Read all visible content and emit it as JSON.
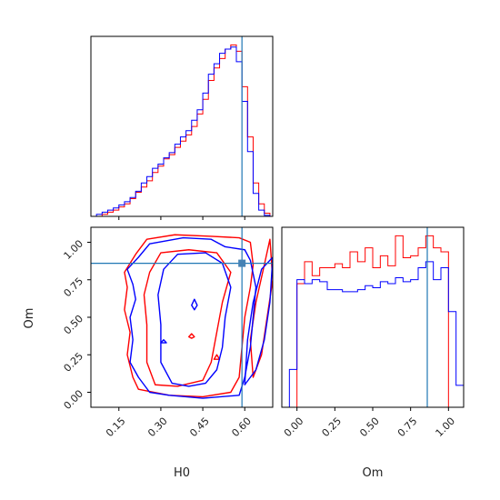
{
  "chart_data": [
    {
      "type": "histogram",
      "panel": "H0 marginal",
      "x_range": [
        0.05,
        0.7
      ],
      "truth_line": 0.59,
      "truth_color": "#1f77b4",
      "bin_edges": [
        0.05,
        0.07,
        0.09,
        0.11,
        0.13,
        0.15,
        0.17,
        0.19,
        0.21,
        0.23,
        0.25,
        0.27,
        0.29,
        0.31,
        0.33,
        0.35,
        0.37,
        0.39,
        0.41,
        0.43,
        0.45,
        0.47,
        0.49,
        0.51,
        0.53,
        0.55,
        0.57,
        0.59,
        0.61,
        0.63,
        0.65,
        0.67,
        0.69
      ],
      "series": [
        {
          "color": "#ff0000",
          "values": [
            0,
            0,
            0.2,
            0.4,
            0.6,
            0.9,
            1.2,
            1.7,
            2.3,
            2.8,
            3.4,
            4.2,
            4.8,
            5.5,
            5.9,
            6.6,
            7.2,
            7.8,
            8.6,
            9.8,
            11.2,
            13.0,
            14.2,
            15.1,
            16.0,
            16.4,
            15.8,
            12.4,
            7.6,
            3.2,
            1.2,
            0.3
          ]
        },
        {
          "color": "#0000ff",
          "values": [
            0,
            0.2,
            0.4,
            0.6,
            0.8,
            1.1,
            1.4,
            1.8,
            2.4,
            3.2,
            3.8,
            4.6,
            5.0,
            5.6,
            6.1,
            6.9,
            7.6,
            8.2,
            9.2,
            10.2,
            11.8,
            13.6,
            14.6,
            15.6,
            16.0,
            16.2,
            14.8,
            11.0,
            6.2,
            2.2,
            0.6,
            0.1
          ]
        }
      ]
    },
    {
      "type": "contour",
      "panel": "H0 vs Om",
      "xlabel": "H0",
      "ylabel": "Om",
      "x_range": [
        0.05,
        0.7
      ],
      "y_range": [
        -0.1,
        1.1
      ],
      "xticks": [
        0.15,
        0.3,
        0.45,
        0.6
      ],
      "xtick_labels": [
        "0.15",
        "0.30",
        "0.45",
        "0.60"
      ],
      "yticks": [
        0.0,
        0.25,
        0.5,
        0.75,
        1.0
      ],
      "ytick_labels": [
        "0.00",
        "0.25",
        "0.50",
        "0.75",
        "1.00"
      ],
      "truth_point": [
        0.59,
        0.86
      ],
      "truth_color": "#1f77b4",
      "series": [
        {
          "color": "#ff0000",
          "contours": [
            [
              [
                0.22,
                0.02
              ],
              [
                0.2,
                0.1
              ],
              [
                0.18,
                0.25
              ],
              [
                0.19,
                0.4
              ],
              [
                0.17,
                0.55
              ],
              [
                0.18,
                0.7
              ],
              [
                0.17,
                0.8
              ],
              [
                0.21,
                0.92
              ],
              [
                0.25,
                1.02
              ],
              [
                0.35,
                1.05
              ],
              [
                0.48,
                1.04
              ],
              [
                0.58,
                1.03
              ],
              [
                0.62,
                1.0
              ],
              [
                0.63,
                0.85
              ],
              [
                0.62,
                0.7
              ],
              [
                0.6,
                0.5
              ],
              [
                0.59,
                0.3
              ],
              [
                0.58,
                0.1
              ],
              [
                0.55,
                0.0
              ],
              [
                0.45,
                -0.03
              ],
              [
                0.33,
                -0.02
              ],
              [
                0.22,
                0.02
              ]
            ],
            [
              [
                0.28,
                0.05
              ],
              [
                0.25,
                0.2
              ],
              [
                0.25,
                0.45
              ],
              [
                0.24,
                0.65
              ],
              [
                0.26,
                0.8
              ],
              [
                0.3,
                0.93
              ],
              [
                0.4,
                0.95
              ],
              [
                0.5,
                0.93
              ],
              [
                0.55,
                0.8
              ],
              [
                0.52,
                0.6
              ],
              [
                0.5,
                0.4
              ],
              [
                0.48,
                0.2
              ],
              [
                0.45,
                0.08
              ],
              [
                0.36,
                0.04
              ],
              [
                0.28,
                0.05
              ]
            ],
            [
              [
                0.63,
                0.1
              ],
              [
                0.62,
                0.35
              ],
              [
                0.64,
                0.6
              ],
              [
                0.67,
                0.85
              ],
              [
                0.69,
                1.02
              ],
              [
                0.7,
                0.75
              ],
              [
                0.68,
                0.5
              ],
              [
                0.66,
                0.25
              ],
              [
                0.63,
                0.1
              ]
            ],
            [
              [
                0.4,
                0.37
              ],
              [
                0.41,
                0.39
              ],
              [
                0.42,
                0.37
              ],
              [
                0.41,
                0.36
              ],
              [
                0.4,
                0.37
              ]
            ],
            [
              [
                0.49,
                0.22
              ],
              [
                0.5,
                0.25
              ],
              [
                0.51,
                0.22
              ],
              [
                0.49,
                0.22
              ]
            ]
          ]
        },
        {
          "color": "#0000ff",
          "contours": [
            [
              [
                0.26,
                0.0
              ],
              [
                0.22,
                0.1
              ],
              [
                0.19,
                0.2
              ],
              [
                0.2,
                0.35
              ],
              [
                0.19,
                0.5
              ],
              [
                0.21,
                0.62
              ],
              [
                0.2,
                0.72
              ],
              [
                0.18,
                0.82
              ],
              [
                0.22,
                0.9
              ],
              [
                0.26,
                0.99
              ],
              [
                0.38,
                1.03
              ],
              [
                0.48,
                1.02
              ],
              [
                0.53,
                0.97
              ],
              [
                0.6,
                0.95
              ],
              [
                0.62,
                0.88
              ],
              [
                0.64,
                0.7
              ],
              [
                0.63,
                0.5
              ],
              [
                0.62,
                0.3
              ],
              [
                0.6,
                0.1
              ],
              [
                0.58,
                -0.02
              ],
              [
                0.45,
                -0.04
              ],
              [
                0.33,
                -0.02
              ],
              [
                0.26,
                0.0
              ]
            ],
            [
              [
                0.34,
                0.06
              ],
              [
                0.3,
                0.2
              ],
              [
                0.3,
                0.45
              ],
              [
                0.29,
                0.65
              ],
              [
                0.31,
                0.82
              ],
              [
                0.36,
                0.92
              ],
              [
                0.46,
                0.93
              ],
              [
                0.52,
                0.86
              ],
              [
                0.55,
                0.7
              ],
              [
                0.53,
                0.5
              ],
              [
                0.52,
                0.3
              ],
              [
                0.5,
                0.15
              ],
              [
                0.46,
                0.06
              ],
              [
                0.4,
                0.04
              ],
              [
                0.34,
                0.06
              ]
            ],
            [
              [
                0.6,
                0.05
              ],
              [
                0.61,
                0.35
              ],
              [
                0.63,
                0.6
              ],
              [
                0.66,
                0.82
              ],
              [
                0.7,
                0.9
              ],
              [
                0.69,
                0.6
              ],
              [
                0.67,
                0.35
              ],
              [
                0.64,
                0.15
              ],
              [
                0.6,
                0.05
              ]
            ],
            [
              [
                0.41,
                0.58
              ],
              [
                0.42,
                0.62
              ],
              [
                0.43,
                0.58
              ],
              [
                0.42,
                0.55
              ],
              [
                0.41,
                0.58
              ]
            ],
            [
              [
                0.3,
                0.33
              ],
              [
                0.31,
                0.35
              ],
              [
                0.32,
                0.33
              ],
              [
                0.3,
                0.33
              ]
            ]
          ]
        }
      ]
    },
    {
      "type": "histogram",
      "panel": "Om marginal",
      "xlabel": "Om",
      "x_range": [
        -0.1,
        1.1
      ],
      "xticks": [
        0.0,
        0.25,
        0.5,
        0.75,
        1.0
      ],
      "xtick_labels": [
        "0.00",
        "0.25",
        "0.50",
        "0.75",
        "1.00"
      ],
      "truth_line": 0.86,
      "truth_color": "#1f77b4",
      "bin_edges": [
        -0.1,
        -0.05,
        0.0,
        0.05,
        0.1,
        0.15,
        0.2,
        0.25,
        0.3,
        0.35,
        0.4,
        0.45,
        0.5,
        0.55,
        0.6,
        0.65,
        0.7,
        0.75,
        0.8,
        0.85,
        0.9,
        0.95,
        1.0,
        1.05,
        1.1
      ],
      "series": [
        {
          "color": "#ff0000",
          "values": [
            0,
            0,
            0.62,
            0.73,
            0.66,
            0.7,
            0.7,
            0.72,
            0.7,
            0.78,
            0.73,
            0.8,
            0.7,
            0.76,
            0.71,
            0.86,
            0.75,
            0.76,
            0.8,
            0.86,
            0.8,
            0.78,
            0,
            0
          ]
        },
        {
          "color": "#0000ff",
          "values": [
            0,
            0.19,
            0.64,
            0.62,
            0.64,
            0.63,
            0.59,
            0.59,
            0.58,
            0.58,
            0.59,
            0.61,
            0.6,
            0.63,
            0.62,
            0.65,
            0.63,
            0.64,
            0.7,
            0.73,
            0.64,
            0.7,
            0.48,
            0.11
          ]
        }
      ]
    }
  ]
}
